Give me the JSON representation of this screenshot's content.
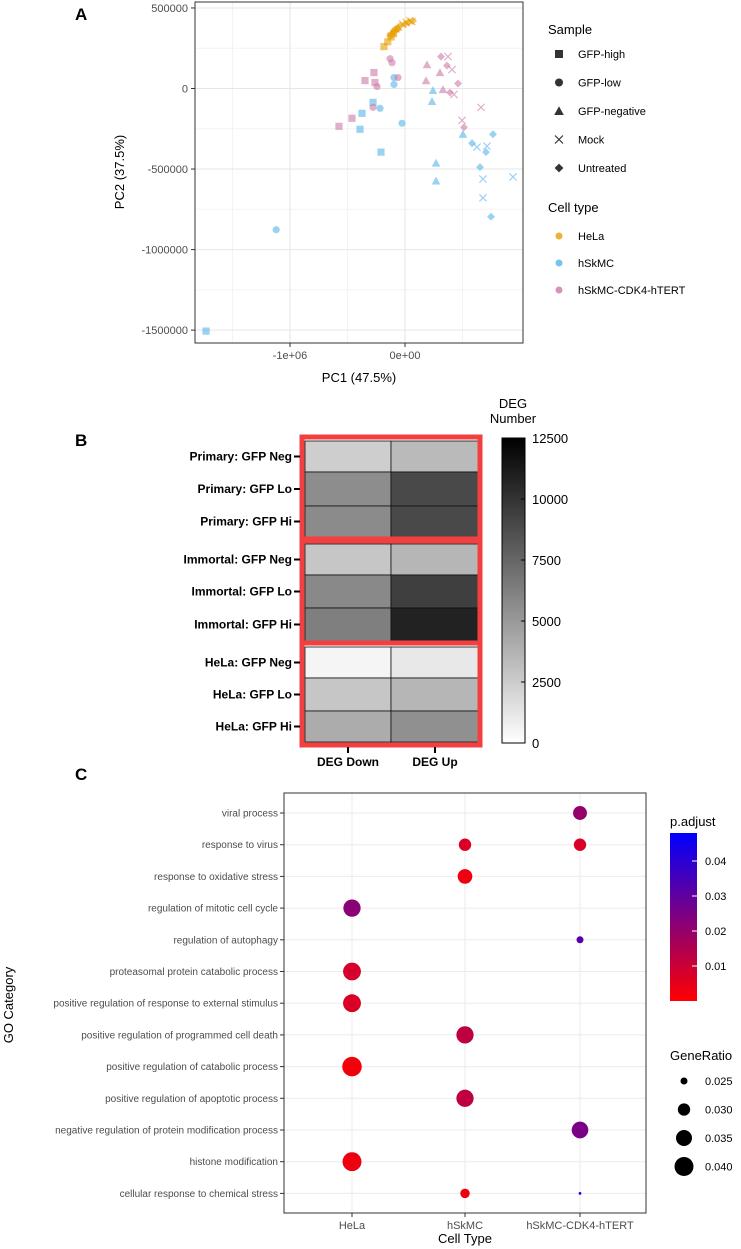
{
  "panels": {
    "a": "A",
    "b": "B",
    "c": "C"
  },
  "chart_data": [
    {
      "type": "scatter",
      "title": "",
      "xlabel": "PC1 (47.5%)",
      "ylabel": "PC2 (37.5%)",
      "xlim": [
        -1826000,
        1026000
      ],
      "ylim": [
        -1580000,
        537000
      ],
      "xticks": [
        {
          "v": -1000000,
          "label": "-1e+06"
        },
        {
          "v": 0,
          "label": "0e+00"
        }
      ],
      "yticks": [
        {
          "v": 500000,
          "label": "500000"
        },
        {
          "v": 0,
          "label": "0"
        },
        {
          "v": -500000,
          "label": "-500000"
        },
        {
          "v": -1000000,
          "label": "-1000000"
        },
        {
          "v": -1500000,
          "label": "-1500000"
        }
      ],
      "grid": true,
      "legend_position": "right",
      "sample_legend": {
        "title": "Sample",
        "items": [
          {
            "label": "GFP-high",
            "shape": "square"
          },
          {
            "label": "GFP-low",
            "shape": "circle"
          },
          {
            "label": "GFP-negative",
            "shape": "triangle"
          },
          {
            "label": "Mock",
            "shape": "x"
          },
          {
            "label": "Untreated",
            "shape": "diamond"
          }
        ]
      },
      "celltype_legend": {
        "title": "Cell type",
        "items": [
          {
            "label": "HeLa",
            "color": "#E69F00"
          },
          {
            "label": "hSkMC",
            "color": "#56B4E9"
          },
          {
            "label": "hSkMC-CDK4-hTERT",
            "color": "#CC79A7"
          }
        ]
      },
      "points_columns": [
        "PC1",
        "PC2",
        "sample",
        "cell_type"
      ],
      "points": [
        [
          -183000,
          260000,
          "GFP-high",
          "HeLa"
        ],
        [
          -150000,
          290000,
          "GFP-high",
          "HeLa"
        ],
        [
          -120000,
          320000,
          "GFP-high",
          "HeLa"
        ],
        [
          -100000,
          340000,
          "GFP-high",
          "HeLa"
        ],
        [
          -130000,
          330000,
          "GFP-low",
          "HeLa"
        ],
        [
          -90000,
          360000,
          "GFP-low",
          "HeLa"
        ],
        [
          -70000,
          370000,
          "GFP-low",
          "HeLa"
        ],
        [
          -110000,
          350000,
          "GFP-negative",
          "HeLa"
        ],
        [
          -80000,
          370000,
          "GFP-negative",
          "HeLa"
        ],
        [
          -60000,
          380000,
          "GFP-negative",
          "HeLa"
        ],
        [
          -20000,
          400000,
          "Mock",
          "HeLa"
        ],
        [
          10000,
          410000,
          "Mock",
          "HeLa"
        ],
        [
          40000,
          420000,
          "Mock",
          "HeLa"
        ],
        [
          60000,
          415000,
          "Mock",
          "HeLa"
        ],
        [
          0,
          400000,
          "Untreated",
          "HeLa"
        ],
        [
          30000,
          410000,
          "Untreated",
          "HeLa"
        ],
        [
          -40000,
          390000,
          "Untreated",
          "HeLa"
        ],
        [
          70000,
          420000,
          "Untreated",
          "HeLa"
        ],
        [
          -1730000,
          -1506000,
          "GFP-high",
          "hSkMC"
        ],
        [
          -278000,
          -86000,
          "GFP-high",
          "hSkMC"
        ],
        [
          -374000,
          -154000,
          "GFP-high",
          "hSkMC"
        ],
        [
          -391000,
          -253000,
          "GFP-high",
          "hSkMC"
        ],
        [
          -209000,
          -395000,
          "GFP-high",
          "hSkMC"
        ],
        [
          -1120000,
          -877000,
          "GFP-low",
          "hSkMC"
        ],
        [
          -96000,
          68000,
          "GFP-low",
          "hSkMC"
        ],
        [
          -96000,
          25000,
          "GFP-low",
          "hSkMC"
        ],
        [
          -217000,
          -123000,
          "GFP-low",
          "hSkMC"
        ],
        [
          -26000,
          -216000,
          "GFP-low",
          "hSkMC"
        ],
        [
          243000,
          -12000,
          "GFP-negative",
          "hSkMC"
        ],
        [
          235000,
          -80000,
          "GFP-negative",
          "hSkMC"
        ],
        [
          504000,
          -284000,
          "GFP-negative",
          "hSkMC"
        ],
        [
          270000,
          -463000,
          "GFP-negative",
          "hSkMC"
        ],
        [
          270000,
          -574000,
          "GFP-negative",
          "hSkMC"
        ],
        [
          626000,
          -364000,
          "Mock",
          "hSkMC"
        ],
        [
          713000,
          -358000,
          "Mock",
          "hSkMC"
        ],
        [
          678000,
          -562000,
          "Mock",
          "hSkMC"
        ],
        [
          678000,
          -679000,
          "Mock",
          "hSkMC"
        ],
        [
          939000,
          -549000,
          "Mock",
          "hSkMC"
        ],
        [
          583000,
          -340000,
          "Untreated",
          "hSkMC"
        ],
        [
          765000,
          -284000,
          "Untreated",
          "hSkMC"
        ],
        [
          704000,
          -395000,
          "Untreated",
          "hSkMC"
        ],
        [
          652000,
          -488000,
          "Untreated",
          "hSkMC"
        ],
        [
          748000,
          -796000,
          "Untreated",
          "hSkMC"
        ],
        [
          -270000,
          99000,
          "GFP-high",
          "hSkMC-CDK4-hTERT"
        ],
        [
          -348000,
          49000,
          "GFP-high",
          "hSkMC-CDK4-hTERT"
        ],
        [
          -261000,
          37000,
          "GFP-high",
          "hSkMC-CDK4-hTERT"
        ],
        [
          -461000,
          -185000,
          "GFP-high",
          "hSkMC-CDK4-hTERT"
        ],
        [
          -574000,
          -235000,
          "GFP-high",
          "hSkMC-CDK4-hTERT"
        ],
        [
          -130000,
          185000,
          "GFP-low",
          "hSkMC-CDK4-hTERT"
        ],
        [
          -113000,
          160000,
          "GFP-low",
          "hSkMC-CDK4-hTERT"
        ],
        [
          -243000,
          12000,
          "GFP-low",
          "hSkMC-CDK4-hTERT"
        ],
        [
          -278000,
          -117000,
          "GFP-low",
          "hSkMC-CDK4-hTERT"
        ],
        [
          -61000,
          68000,
          "GFP-low",
          "hSkMC-CDK4-hTERT"
        ],
        [
          191000,
          148000,
          "GFP-negative",
          "hSkMC-CDK4-hTERT"
        ],
        [
          304000,
          99000,
          "GFP-negative",
          "hSkMC-CDK4-hTERT"
        ],
        [
          183000,
          49000,
          "GFP-negative",
          "hSkMC-CDK4-hTERT"
        ],
        [
          330000,
          -6000,
          "GFP-negative",
          "hSkMC-CDK4-hTERT"
        ],
        [
          374000,
          198000,
          "Mock",
          "hSkMC-CDK4-hTERT"
        ],
        [
          409000,
          117000,
          "Mock",
          "hSkMC-CDK4-hTERT"
        ],
        [
          426000,
          -37000,
          "Mock",
          "hSkMC-CDK4-hTERT"
        ],
        [
          661000,
          -117000,
          "Mock",
          "hSkMC-CDK4-hTERT"
        ],
        [
          496000,
          -198000,
          "Mock",
          "hSkMC-CDK4-hTERT"
        ],
        [
          313000,
          198000,
          "Untreated",
          "hSkMC-CDK4-hTERT"
        ],
        [
          365000,
          142000,
          "Untreated",
          "hSkMC-CDK4-hTERT"
        ],
        [
          461000,
          31000,
          "Untreated",
          "hSkMC-CDK4-hTERT"
        ],
        [
          391000,
          -25000,
          "Untreated",
          "hSkMC-CDK4-hTERT"
        ],
        [
          513000,
          -241000,
          "Untreated",
          "hSkMC-CDK4-hTERT"
        ]
      ]
    },
    {
      "type": "heatmap",
      "title": "",
      "columns": [
        "DEG Down",
        "DEG Up"
      ],
      "rows": [
        "Primary: GFP Neg",
        "Primary: GFP Lo",
        "Primary: GFP Hi",
        "Immortal: GFP Neg",
        "Immortal: GFP Lo",
        "Immortal: GFP Hi",
        "HeLa: GFP Neg",
        "HeLa: GFP Lo",
        "HeLa: GFP Hi"
      ],
      "groups": [
        [
          0,
          1,
          2
        ],
        [
          3,
          4,
          5
        ],
        [
          6,
          7,
          8
        ]
      ],
      "values": [
        [
          2300,
          3300
        ],
        [
          5600,
          9000
        ],
        [
          5700,
          9000
        ],
        [
          2700,
          3500
        ],
        [
          5800,
          9500
        ],
        [
          6300,
          11000
        ],
        [
          300,
          1000
        ],
        [
          2700,
          3500
        ],
        [
          4000,
          5400
        ]
      ],
      "colorbar": {
        "title_lines": [
          "DEG",
          "Number"
        ],
        "range": [
          0,
          12500
        ],
        "ticks": [
          "12500",
          "10000",
          "7500",
          "5000",
          "2500",
          "0"
        ],
        "low_color": "#ffffff",
        "high_color": "#000000"
      },
      "group_border_color": "#f24040"
    },
    {
      "type": "scatter",
      "subtype": "dotplot",
      "xlabel": "Cell Type",
      "ylabel": "GO Category",
      "categories_x": [
        "HeLa",
        "hSkMC",
        "hSkMC-CDK4-hTERT"
      ],
      "categories_y": [
        "viral process",
        "response to virus",
        "response to oxidative stress",
        "regulation of mitotic cell cycle",
        "regulation of autophagy",
        "proteasomal protein catabolic process",
        "positive regulation of response to external stimulus",
        "positive regulation of programmed cell death",
        "positive regulation of catabolic process",
        "positive regulation of apoptotic process",
        "negative regulation of protein modification process",
        "histone modification",
        "cellular response to chemical stress"
      ],
      "points_columns": [
        "go_index",
        "cell_index",
        "GeneRatio",
        "p_adjust"
      ],
      "points": [
        [
          0,
          2,
          0.032,
          0.02
        ],
        [
          1,
          1,
          0.03,
          0.007
        ],
        [
          1,
          2,
          0.03,
          0.007
        ],
        [
          2,
          1,
          0.033,
          0.003
        ],
        [
          3,
          0,
          0.037,
          0.022
        ],
        [
          4,
          2,
          0.025,
          0.032
        ],
        [
          5,
          0,
          0.038,
          0.008
        ],
        [
          6,
          0,
          0.038,
          0.007
        ],
        [
          7,
          1,
          0.037,
          0.012
        ],
        [
          8,
          0,
          0.041,
          0.002
        ],
        [
          9,
          1,
          0.037,
          0.012
        ],
        [
          10,
          2,
          0.036,
          0.025
        ],
        [
          11,
          0,
          0.04,
          0.003
        ],
        [
          12,
          1,
          0.027,
          0.003
        ],
        [
          12,
          2,
          0.023,
          0.048
        ]
      ],
      "color_legend": {
        "title": "p.adjust",
        "range": [
          0,
          0.048
        ],
        "ticks": [
          {
            "v": 0.04,
            "label": "0.04"
          },
          {
            "v": 0.03,
            "label": "0.03"
          },
          {
            "v": 0.02,
            "label": "0.02"
          },
          {
            "v": 0.01,
            "label": "0.01"
          }
        ],
        "low_color": "#ff0000",
        "high_color": "#0000ff"
      },
      "size_legend": {
        "title": "GeneRatio",
        "items": [
          {
            "v": 0.025,
            "label": "0.025"
          },
          {
            "v": 0.03,
            "label": "0.030"
          },
          {
            "v": 0.035,
            "label": "0.035"
          },
          {
            "v": 0.04,
            "label": "0.040"
          }
        ]
      }
    }
  ]
}
